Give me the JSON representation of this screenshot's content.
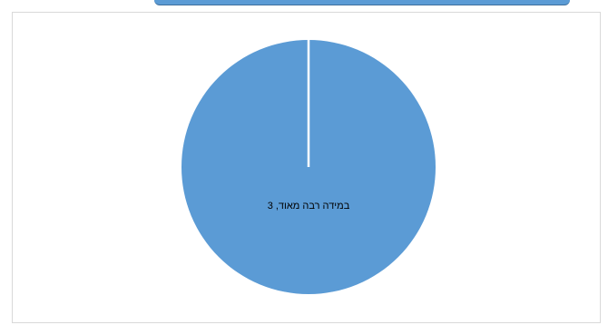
{
  "colors": {
    "slice": "#5b9bd5",
    "separator": "#ffffff",
    "border": "#d9d9d9"
  },
  "chart_data": {
    "type": "pie",
    "categories": [
      "במידה רבה מאוד"
    ],
    "values": [
      3
    ],
    "data_labels": [
      "במידה רבה מאוד, 3"
    ],
    "legend": "none"
  }
}
